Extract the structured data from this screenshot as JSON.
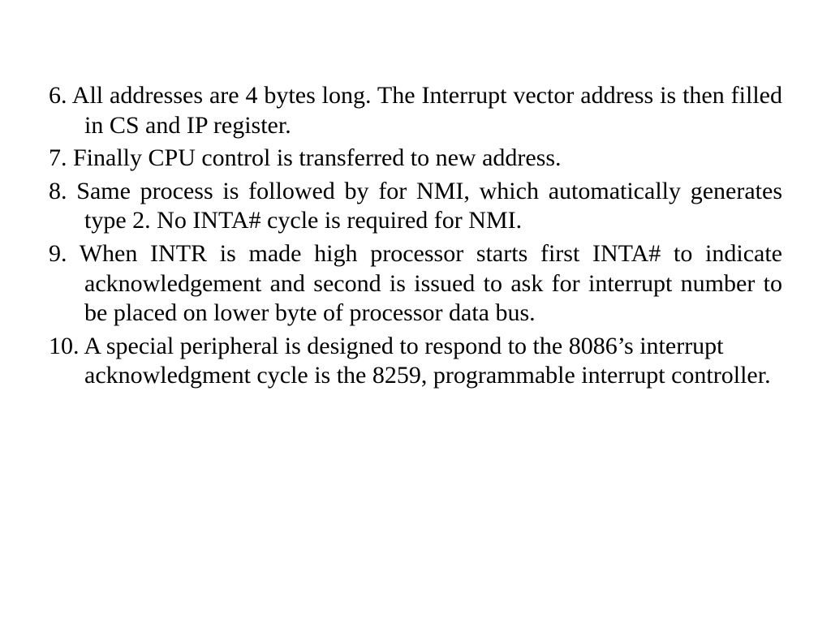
{
  "slide": {
    "background_color": "#ffffff",
    "text_color": "#000000",
    "font_family": "Times New Roman",
    "body_fontsize_pt": 22,
    "items": [
      {
        "number": "6.",
        "justify": true,
        "text": "All addresses are 4 bytes long. The Interrupt vector address is then filled in CS and IP register."
      },
      {
        "number": "7.",
        "justify": false,
        "text": "Finally CPU control is transferred to new address."
      },
      {
        "number": "8.",
        "justify": true,
        "text": "Same process is followed by for NMI, which automatically generates type 2. No INTA# cycle is required for NMI."
      },
      {
        "number": "9.",
        "justify": true,
        "text": "When INTR is made high processor starts first INTA# to indicate acknowledgement and second is issued to ask for interrupt number to be placed on lower byte of processor data bus."
      },
      {
        "number": "10.",
        "justify": false,
        "text": "A special peripheral is designed to respond to the 8086’s interrupt acknowledgment cycle is the 8259, programmable interrupt controller."
      }
    ]
  }
}
